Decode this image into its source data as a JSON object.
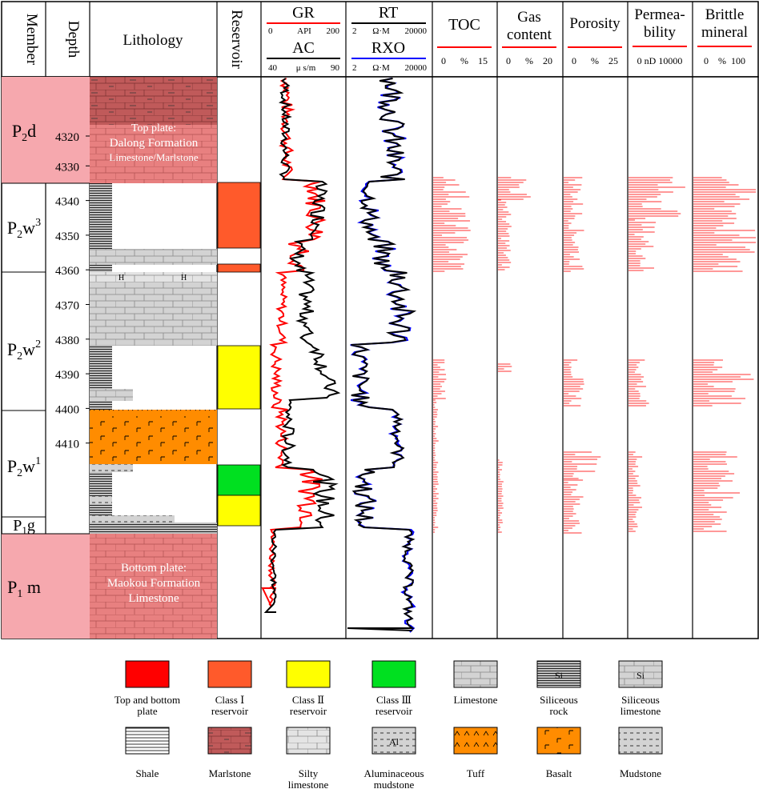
{
  "headers": {
    "member": "Member",
    "depth": "Depth",
    "lithology": "Lithology",
    "reservoir": "Reservoir",
    "gr": {
      "name": "GR",
      "min": "0",
      "unit": "API",
      "max": "200"
    },
    "ac": {
      "name": "AC",
      "min": "40",
      "unit": "μ s/m",
      "max": "90"
    },
    "rt": {
      "name": "RT",
      "min": "2",
      "unit": "Ω·M",
      "max": "20000"
    },
    "rxo": {
      "name": "RXO",
      "min": "2",
      "unit": "Ω·M",
      "max": "20000"
    },
    "toc": {
      "name": "TOC",
      "scale": "0      %    15"
    },
    "gas": {
      "name1": "Gas",
      "name2": "content",
      "scale": "0      %    20"
    },
    "porosity": {
      "name": "Porosity",
      "scale": "0      %    25"
    },
    "perm": {
      "name1": "Permea-",
      "name2": "bility",
      "scale": "0 nD 10000"
    },
    "brittle": {
      "name1": "Brittle",
      "name2": "mineral",
      "scale": "0    %  100"
    }
  },
  "depth_ticks": [
    "4320",
    "4330",
    "4340",
    "4350",
    "4360",
    "4370",
    "4380",
    "4390",
    "4400",
    "4410"
  ],
  "members": [
    {
      "base": "P",
      "sub": "2",
      "rest": "d",
      "sup": ""
    },
    {
      "base": "P",
      "sub": "2",
      "rest": "w",
      "sup": "3"
    },
    {
      "base": "P",
      "sub": "2",
      "rest": "w",
      "sup": "2"
    },
    {
      "base": "P",
      "sub": "2",
      "rest": "w",
      "sup": "1"
    },
    {
      "base": "P",
      "sub": "1",
      "rest": "g",
      "sup": ""
    },
    {
      "base": "P",
      "sub": "1",
      "rest": " m",
      "sup": ""
    }
  ],
  "plates": {
    "top": [
      "Top plate:",
      "Dalong Formation",
      "Limestone/Marlstone"
    ],
    "bottom": [
      "Bottom plate:",
      "Maokou Formation",
      "Limestone"
    ]
  },
  "reservoir_classes": {
    "class1": "#ff5a2b",
    "class2": "#ffff00",
    "class3": "#00e020"
  },
  "colors": {
    "gr": "#ff0000",
    "ac": "#000000",
    "rt": "#000000",
    "rxo": "#0000ff",
    "bars": "#ff3030",
    "plate": "#e88080",
    "member_plate": "#f6a8ae",
    "tuff": "#ff8c00",
    "limestone": "#d3d3d3"
  },
  "legend": [
    {
      "label": "Top and bottom plate",
      "color": "#ff0000"
    },
    {
      "label": "Class Ⅰ reservoir",
      "color": "#ff5a2b"
    },
    {
      "label": "Class Ⅱ reservoir",
      "color": "#ffff00"
    },
    {
      "label": "Class Ⅲ reservoir",
      "color": "#00e020"
    },
    {
      "label": "Limestone",
      "color": "#d3d3d3"
    },
    {
      "label": "Siliceous rock",
      "color": "#555555"
    },
    {
      "label": "Siliceous limestone",
      "color": "#d3d3d3"
    },
    {
      "label": "Shale",
      "color": "#ffffff"
    },
    {
      "label": "Marlstone",
      "color": "#808080"
    },
    {
      "label": "Silty limestone",
      "color": "#d3d3d3"
    },
    {
      "label": "Aluminaceous mudstone",
      "color": "#d3d3d3"
    },
    {
      "label": "Tuff",
      "color": "#ff8c00"
    },
    {
      "label": "Basalt",
      "color": "#ff8c00"
    },
    {
      "label": "Mudstone",
      "color": "#d3d3d3"
    }
  ],
  "legend_marks": {
    "siliceous": "Si",
    "aluminaceous": "Al"
  }
}
